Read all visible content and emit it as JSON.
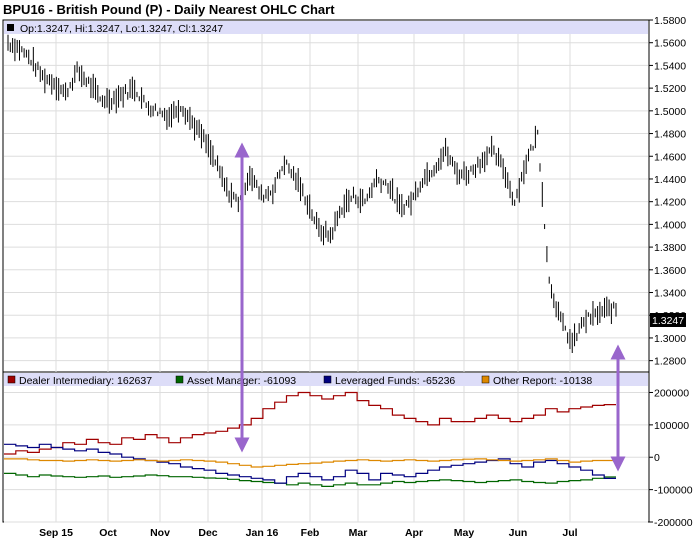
{
  "chart_data": {
    "type": "line",
    "title": "BPU16 - British Pound (P) - Daily Nearest OHLC Chart",
    "info_line": "Op:1.3247, Hi:1.3247, Lo:1.3247, Cl:1.3247",
    "last_price_label": "1.3247",
    "last_price": 1.3247,
    "x_tick_labels": [
      "Sep 15",
      "Oct",
      "Nov",
      "Dec",
      "Jan 16",
      "Feb",
      "Mar",
      "Apr",
      "May",
      "Jun",
      "Jul"
    ],
    "price_panel": {
      "ylim": [
        1.27,
        1.58
      ],
      "y_ticks": [
        1.58,
        1.56,
        1.54,
        1.52,
        1.5,
        1.48,
        1.46,
        1.44,
        1.42,
        1.4,
        1.38,
        1.36,
        1.34,
        1.32,
        1.3,
        1.28
      ],
      "y_tick_labels": [
        "1.5800",
        "1.5600",
        "1.5400",
        "1.5200",
        "1.5000",
        "1.4800",
        "1.4600",
        "1.4400",
        "1.4200",
        "1.4000",
        "1.3800",
        "1.3600",
        "1.3400",
        "1.3200",
        "1.3000",
        "1.2800"
      ],
      "close_series_weekly": [
        1.56,
        1.555,
        1.545,
        1.53,
        1.525,
        1.515,
        1.535,
        1.525,
        1.51,
        1.51,
        1.515,
        1.52,
        1.505,
        1.5,
        1.495,
        1.505,
        1.49,
        1.475,
        1.455,
        1.43,
        1.42,
        1.445,
        1.425,
        1.43,
        1.455,
        1.44,
        1.42,
        1.395,
        1.39,
        1.415,
        1.425,
        1.42,
        1.44,
        1.435,
        1.415,
        1.42,
        1.44,
        1.45,
        1.465,
        1.445,
        1.445,
        1.455,
        1.465,
        1.45,
        1.42,
        1.455,
        1.48,
        1.35,
        1.315,
        1.295,
        1.315,
        1.32,
        1.325
      ]
    },
    "cot_panel": {
      "ylim": [
        -200000,
        220000
      ],
      "y_ticks": [
        200000,
        100000,
        0,
        -100000,
        -200000
      ],
      "y_tick_labels": [
        "200000",
        "100000",
        "0",
        "-100000",
        "-200000"
      ],
      "series": [
        {
          "name": "Dealer Intermediary",
          "legend": "Dealer Intermediary: 162637",
          "color": "#a00000",
          "values": [
            10000,
            20000,
            15000,
            25000,
            30000,
            45000,
            40000,
            55000,
            45000,
            40000,
            60000,
            55000,
            70000,
            60000,
            45000,
            60000,
            70000,
            75000,
            80000,
            90000,
            100000,
            120000,
            150000,
            170000,
            190000,
            200000,
            190000,
            180000,
            190000,
            200000,
            175000,
            160000,
            150000,
            130000,
            120000,
            110000,
            100000,
            120000,
            110000,
            110000,
            120000,
            130000,
            120000,
            110000,
            120000,
            130000,
            150000,
            140000,
            150000,
            155000,
            160000,
            162637
          ]
        },
        {
          "name": "Asset Manager",
          "legend": "Asset Manager: -61093",
          "color": "#006600",
          "values": [
            -50000,
            -55000,
            -60000,
            -55000,
            -58000,
            -60000,
            -62000,
            -60000,
            -58000,
            -62000,
            -60000,
            -58000,
            -55000,
            -57000,
            -60000,
            -60000,
            -62000,
            -64000,
            -65000,
            -68000,
            -72000,
            -75000,
            -78000,
            -80000,
            -85000,
            -80000,
            -85000,
            -90000,
            -85000,
            -80000,
            -85000,
            -85000,
            -80000,
            -75000,
            -78000,
            -75000,
            -72000,
            -70000,
            -72000,
            -75000,
            -78000,
            -75000,
            -72000,
            -70000,
            -75000,
            -78000,
            -80000,
            -75000,
            -72000,
            -70000,
            -65000,
            -61093
          ]
        },
        {
          "name": "Leveraged Funds",
          "legend": "Leveraged Funds: -65236",
          "color": "#000080",
          "values": [
            40000,
            35000,
            30000,
            40000,
            30000,
            25000,
            20000,
            25000,
            15000,
            10000,
            0,
            -5000,
            -10000,
            -15000,
            -20000,
            -30000,
            -35000,
            -40000,
            -50000,
            -55000,
            -60000,
            -65000,
            -70000,
            -80000,
            -60000,
            -50000,
            -60000,
            -70000,
            -60000,
            -40000,
            -50000,
            -70000,
            -50000,
            -55000,
            -60000,
            -50000,
            -40000,
            -30000,
            -25000,
            -20000,
            -15000,
            -10000,
            -5000,
            -20000,
            -30000,
            -15000,
            -10000,
            -20000,
            -30000,
            -40000,
            -55000,
            -65236
          ]
        },
        {
          "name": "Other Report",
          "legend": "Other Report: -10138",
          "color": "#dd8800",
          "values": [
            -5000,
            -5000,
            -8000,
            -10000,
            -10000,
            -12000,
            -10000,
            -8000,
            -10000,
            -12000,
            -10000,
            -8000,
            -10000,
            -12000,
            -10000,
            -8000,
            -10000,
            -12000,
            -15000,
            -20000,
            -25000,
            -30000,
            -28000,
            -25000,
            -22000,
            -20000,
            -18000,
            -15000,
            -12000,
            -10000,
            -8000,
            -10000,
            -12000,
            -10000,
            -8000,
            -10000,
            -12000,
            -10000,
            -8000,
            -6000,
            -5000,
            -8000,
            -10000,
            -12000,
            -10000,
            -8000,
            -5000,
            -10000,
            -15000,
            -12000,
            -10000,
            -10138
          ]
        }
      ]
    },
    "annotations": [
      "purple double-headed arrow near late December",
      "purple double-headed arrow at last bar"
    ],
    "colors": {
      "arrow": "#9966cc",
      "header_band": "#ddddf8",
      "grid": "#dddddd",
      "label_bg": "#000000"
    }
  }
}
